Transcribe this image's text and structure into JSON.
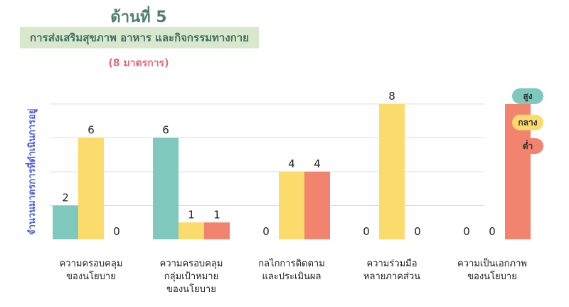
{
  "header": {
    "title": "ด้านที่ 5",
    "subtitle": "การส่งเสริมสุขภาพ อาหาร และกิจกรรมทางกาย",
    "note": "(8 มาตรการ)"
  },
  "colors": {
    "high": "#7ec8bd",
    "medium": "#fcdb6d",
    "low": "#f2836e",
    "gridline": "#dddddd"
  },
  "chart_data": {
    "type": "bar",
    "title": "",
    "xlabel": "",
    "ylabel": "จำนวนมาตรการที่ดำเนินการอยู่",
    "ylim": [
      0,
      8
    ],
    "grid": true,
    "legend_position": "right",
    "categories": [
      [
        "ความครอบคลุม",
        "ของนโยบาย"
      ],
      [
        "ความครอบคลุม",
        "กลุ่มเป้าหมาย",
        "ของนโยบาย"
      ],
      [
        "กลไกการติดตาม",
        "และประเมินผล"
      ],
      [
        "ความร่วมมือ",
        "หลายภาคส่วน"
      ],
      [
        "ความเป็นเอกภาพ",
        "ของนโยบาย"
      ]
    ],
    "series": [
      {
        "name": "สูง",
        "color": "#7ec8bd",
        "values": [
          2,
          6,
          0,
          0,
          0
        ]
      },
      {
        "name": "กลาง",
        "color": "#fcdb6d",
        "values": [
          6,
          1,
          4,
          8,
          0
        ]
      },
      {
        "name": "ต่ำ",
        "color": "#f2836e",
        "values": [
          0,
          1,
          4,
          0,
          8
        ]
      }
    ]
  }
}
